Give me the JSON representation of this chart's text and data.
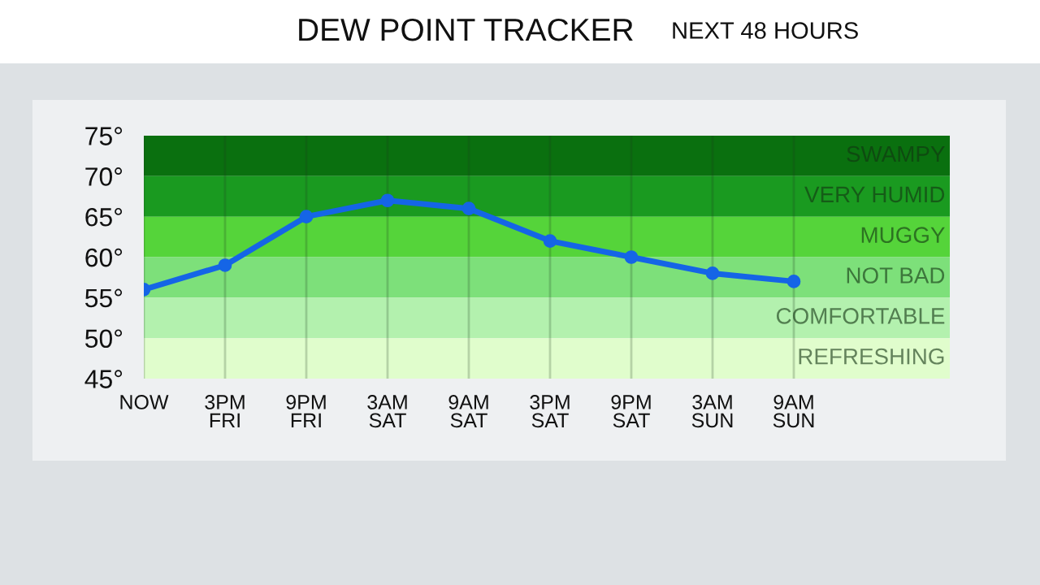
{
  "chart_data": {
    "type": "line",
    "title": "DEW POINT TRACKER",
    "subtitle": "NEXT 48 HOURS",
    "categories": [
      "NOW",
      "3PM\nFRI",
      "9PM\nFRI",
      "3AM\nSAT",
      "9AM\nSAT",
      "3PM\nSAT",
      "9PM\nSAT",
      "3AM\nSUN",
      "9AM\nSUN"
    ],
    "series": [
      {
        "color": "#1565e6",
        "values": [
          56,
          59,
          65,
          67,
          66,
          62,
          60,
          58,
          57
        ]
      }
    ],
    "ylim": [
      45,
      75
    ],
    "yticks": [
      {
        "value": 45,
        "label": "45°"
      },
      {
        "value": 50,
        "label": "50°"
      },
      {
        "value": 55,
        "label": "55°"
      },
      {
        "value": 60,
        "label": "60°"
      },
      {
        "value": 65,
        "label": "65°"
      },
      {
        "value": 70,
        "label": "70°"
      },
      {
        "value": 75,
        "label": "75°"
      }
    ],
    "bands": [
      {
        "axis": "y",
        "from": 70,
        "to": 75,
        "label": "SWAMPY",
        "color": "#0a700f"
      },
      {
        "axis": "y",
        "from": 65,
        "to": 70,
        "label": "VERY HUMID",
        "color": "#1a9a20"
      },
      {
        "axis": "y",
        "from": 60,
        "to": 65,
        "label": "MUGGY",
        "color": "#55d43a"
      },
      {
        "axis": "y",
        "from": 55,
        "to": 60,
        "label": "NOT BAD",
        "color": "#7de07a"
      },
      {
        "axis": "y",
        "from": 50,
        "to": 55,
        "label": "COMFORTABLE",
        "color": "#b3f1ae"
      },
      {
        "axis": "y",
        "from": 45,
        "to": 50,
        "label": "REFRESHING",
        "color": "#e0fdcc"
      }
    ],
    "grid": "x",
    "marker": "circle",
    "line_style": "solid"
  }
}
